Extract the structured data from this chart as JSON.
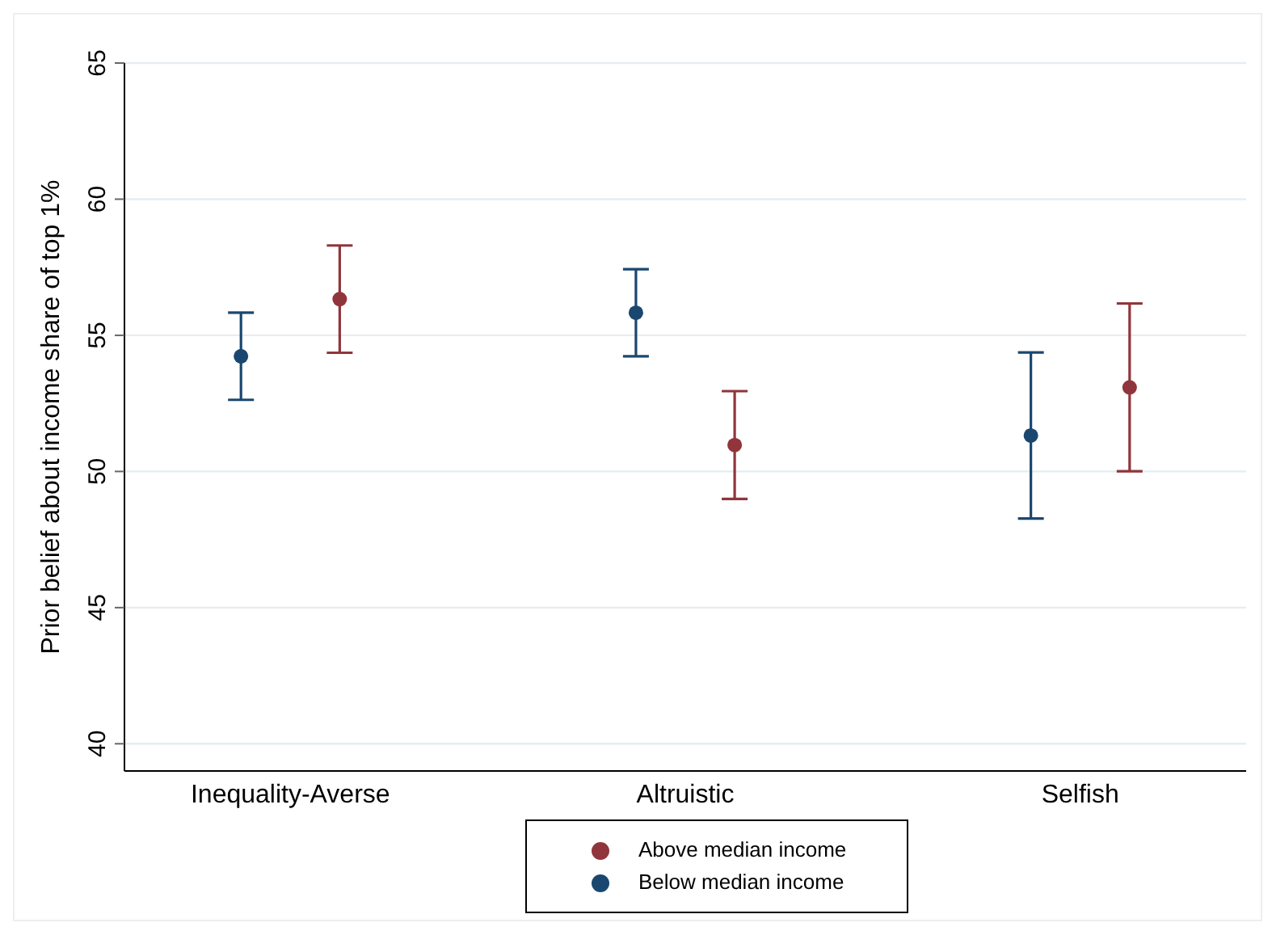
{
  "chart_data": {
    "type": "scatter",
    "ylabel": "Prior belief about income share of top 1%",
    "categories": [
      "Inequality-Averse",
      "Altruistic",
      "Selfish"
    ],
    "series": [
      {
        "name": "Below median income",
        "color": "#1a476f",
        "values": [
          54.23,
          55.83,
          51.32
        ],
        "errors": [
          1.6,
          1.6,
          3.05
        ]
      },
      {
        "name": "Above median income",
        "color": "#90353b",
        "values": [
          56.33,
          50.97,
          53.09
        ],
        "errors": [
          1.97,
          1.98,
          3.08
        ]
      }
    ],
    "ylim": [
      39,
      65
    ],
    "yticks": [
      40,
      45,
      50,
      55,
      60,
      65
    ],
    "grid": "y",
    "legend": "bottom",
    "marker": "circle"
  }
}
